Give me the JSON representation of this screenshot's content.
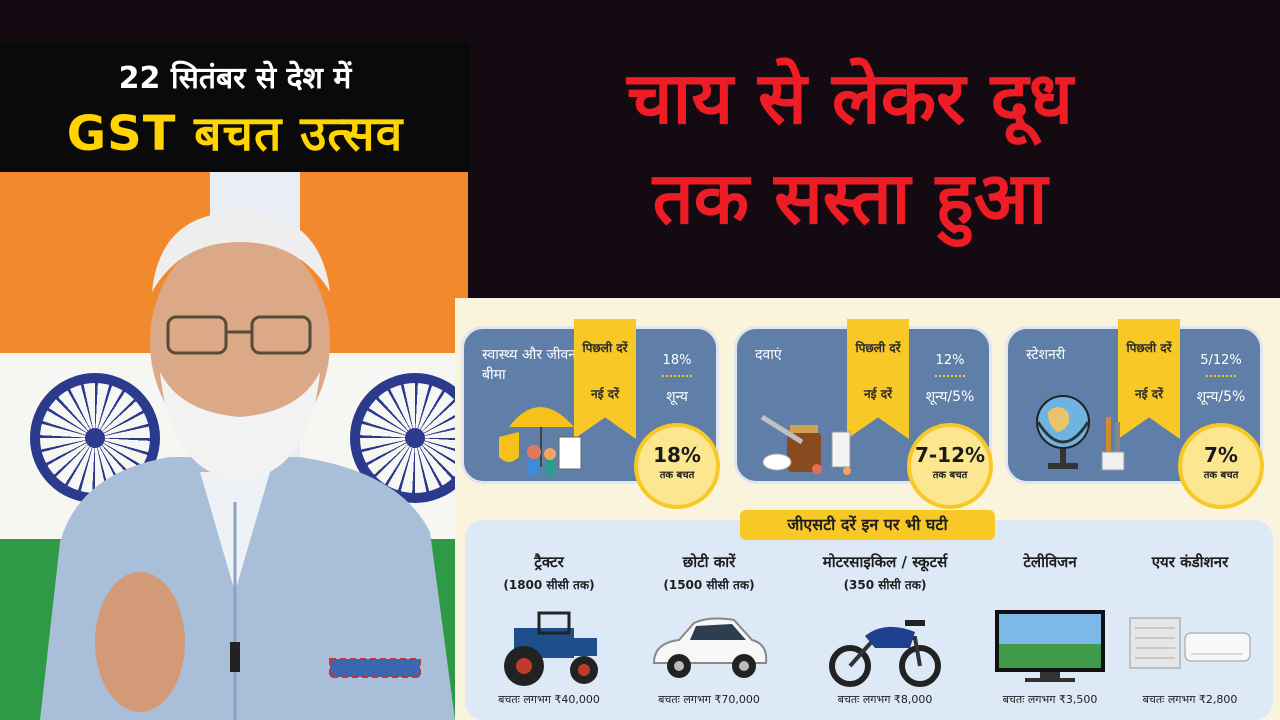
{
  "banner": {
    "line1": "22 सितंबर से देश में",
    "line2": "GST बचत उत्सव"
  },
  "headline": {
    "line1": "चाय से लेकर दूध",
    "line2": "तक सस्ता हुआ"
  },
  "colors": {
    "headline": "#ee1c25",
    "banner_highlight": "#ffd400",
    "card_bg": "#5f7fa8",
    "ribbon": "#f7c826",
    "infographic_bg": "#fbf4dd"
  },
  "rate_cards": [
    {
      "label": "स्वास्थ्य और जीवन बीमा",
      "prev_label": "पिछली दरें",
      "new_label": "नई दरें",
      "old_rate": "18%",
      "new_rate": "शून्य",
      "saving_value": "18%",
      "saving_text": "तक बचत",
      "icon": "umbrella-insurance-icon"
    },
    {
      "label": "दवाएं",
      "prev_label": "पिछली दरें",
      "new_label": "नई दरें",
      "old_rate": "12%",
      "new_rate": "शून्य/5%",
      "saving_value": "7-12%",
      "saving_text": "तक बचत",
      "icon": "medicine-icon"
    },
    {
      "label": "स्टेशनरी",
      "prev_label": "पिछली दरें",
      "new_label": "नई दरें",
      "old_rate": "5/12%",
      "new_rate": "शून्य/5%",
      "saving_value": "7%",
      "saving_text": "तक बचत",
      "icon": "globe-stationery-icon"
    }
  ],
  "reduced": {
    "title": "जीएसटी दरें इन पर भी घटी",
    "items": [
      {
        "name": "ट्रैक्टर",
        "sub": "(1800 सीसी तक)",
        "saving": "बचतः लगभग ₹40,000",
        "icon": "tractor-icon"
      },
      {
        "name": "छोटी कारें",
        "sub": "(1500 सीसी तक)",
        "saving": "बचतः लगभग ₹70,000",
        "icon": "car-icon"
      },
      {
        "name": "मोटरसाइकिल / स्कूटर्स",
        "sub": "(350 सीसी तक)",
        "saving": "बचतः लगभग ₹8,000",
        "icon": "motorcycle-icon"
      },
      {
        "name": "टेलीविजन",
        "sub": "",
        "saving": "बचतः लगभग ₹3,500",
        "icon": "television-icon"
      },
      {
        "name": "एयर कंडीशनर",
        "sub": "",
        "saving": "बचतः लगभग ₹2,800",
        "icon": "air-conditioner-icon"
      }
    ]
  }
}
